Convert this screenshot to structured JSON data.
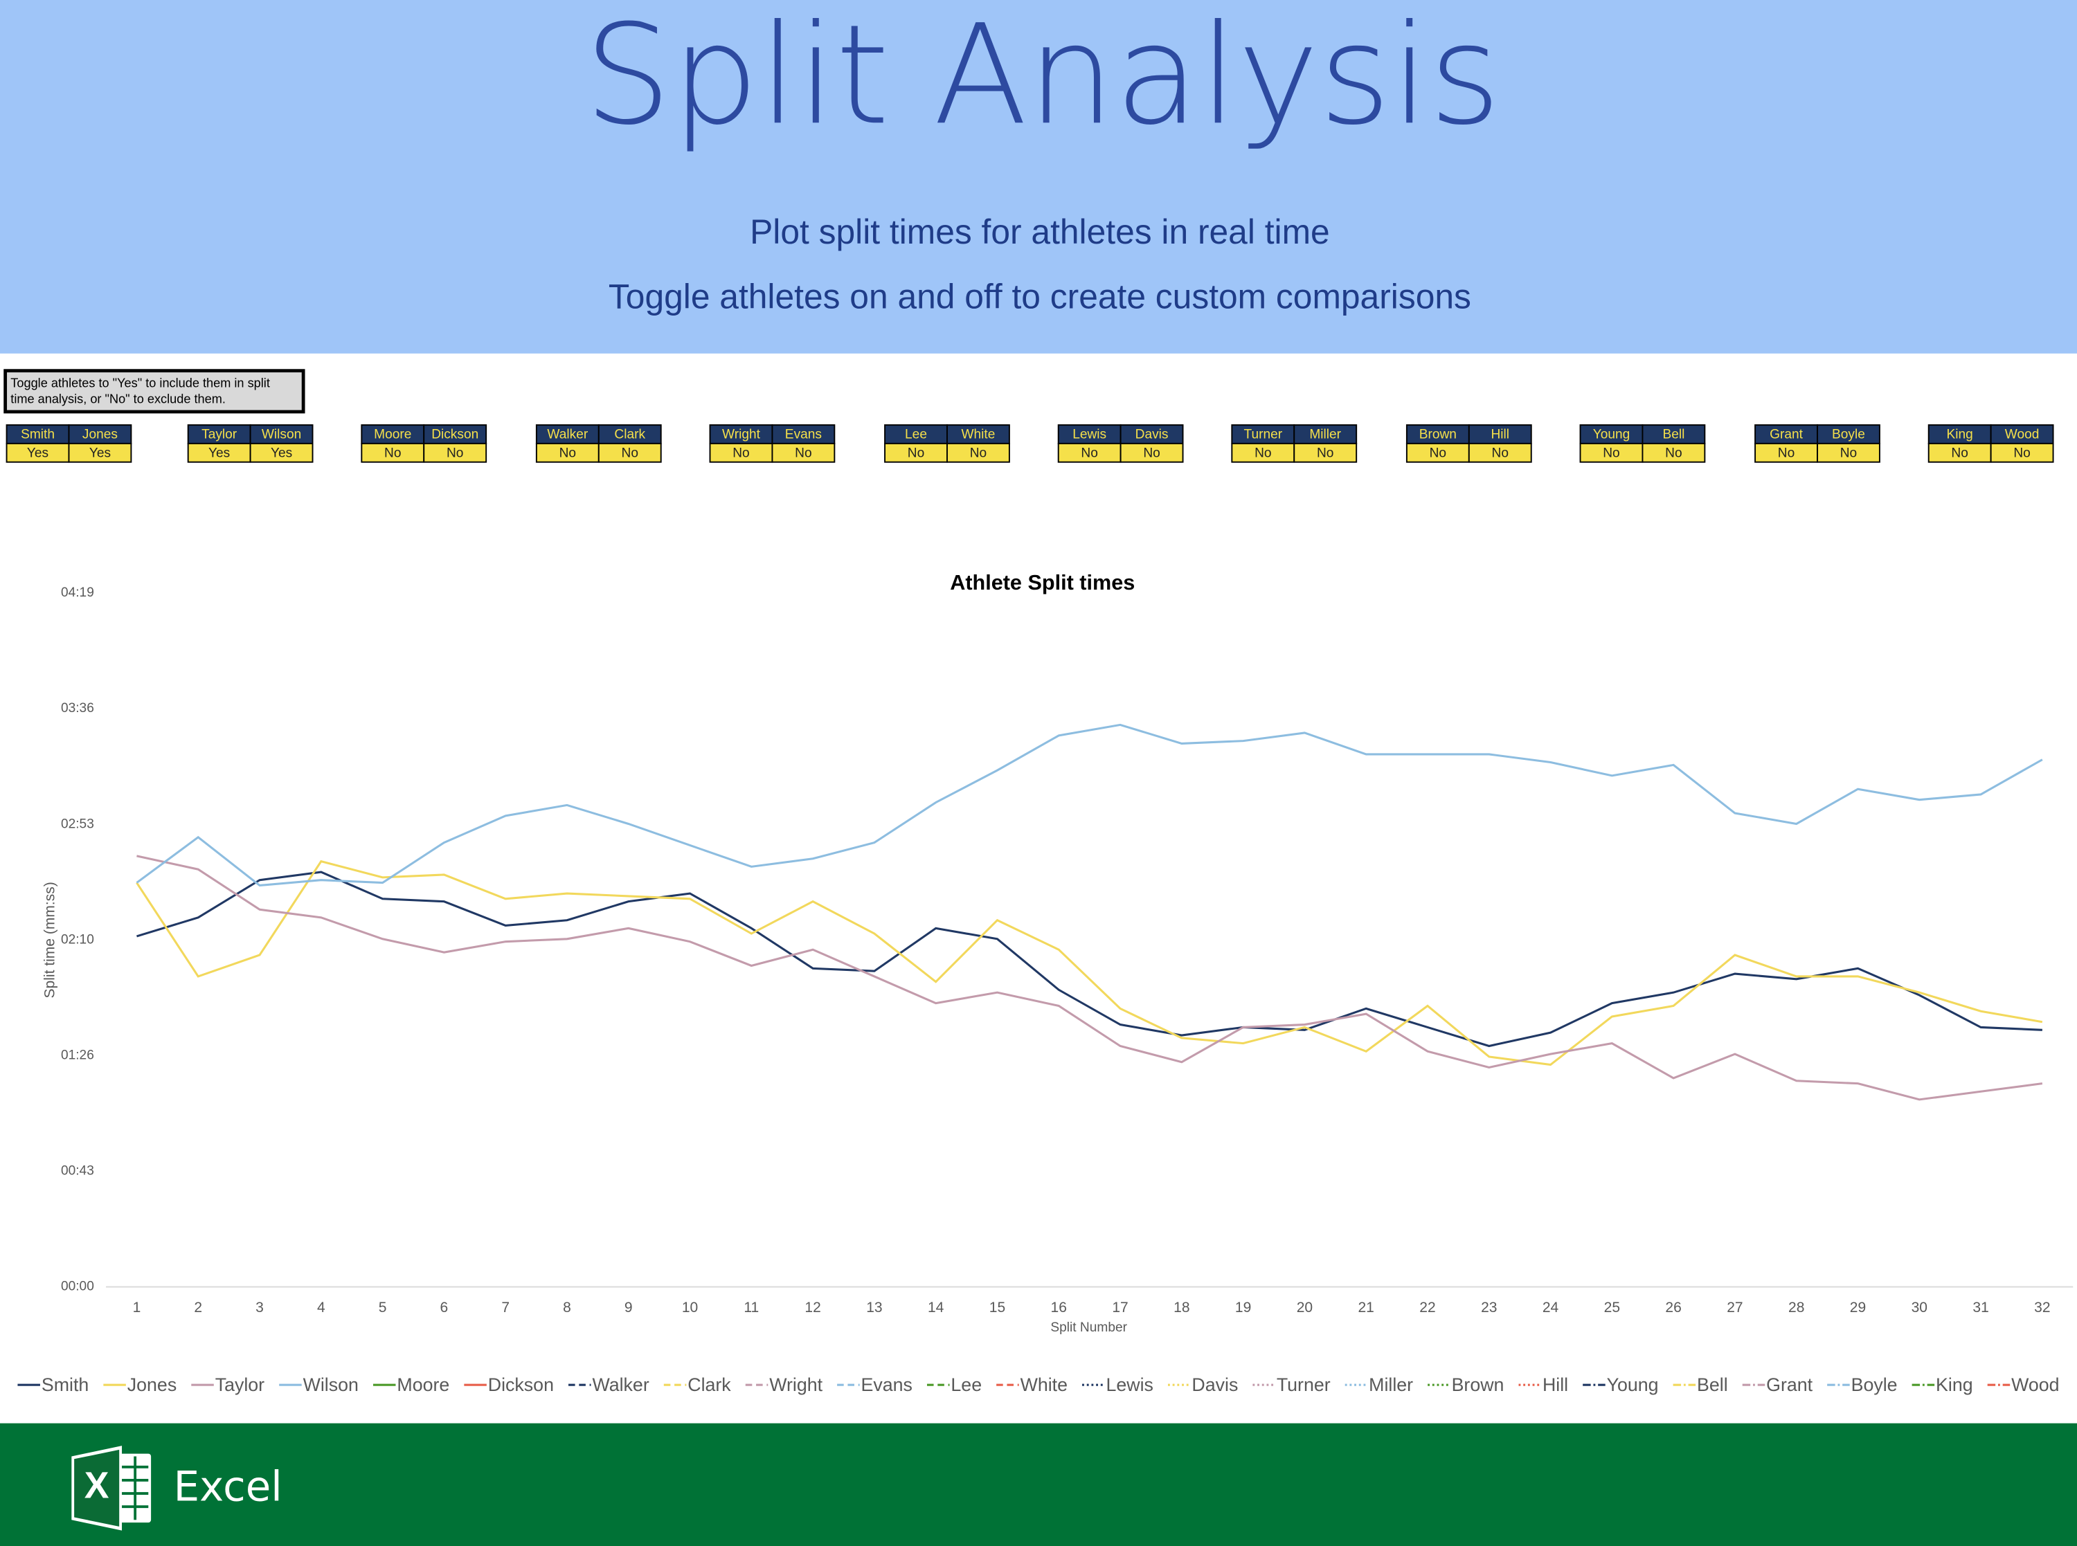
{
  "header": {
    "title": "Split Analysis",
    "subtitle": "Plot split times for athletes in real time",
    "tagline": "Toggle athletes on and off to create custom comparisons"
  },
  "instructions": [
    "Toggle athletes to \"Yes\" to include them in split",
    "time analysis, or \"No\" to exclude them."
  ],
  "toggles": [
    "Yes",
    "Yes",
    "Yes",
    "Yes",
    "No",
    "No",
    "No",
    "No",
    "No",
    "No",
    "No",
    "No",
    "No",
    "No",
    "No",
    "No",
    "No",
    "No",
    "No",
    "No",
    "No",
    "No",
    "No",
    "No"
  ],
  "chart_data": {
    "type": "line",
    "title": "Athlete Split times",
    "x_label": "Split Number",
    "y_label": "Split time (mm:ss)",
    "x": [
      1,
      2,
      3,
      4,
      5,
      6,
      7,
      8,
      9,
      10,
      11,
      12,
      13,
      14,
      15,
      16,
      17,
      18,
      19,
      20,
      21,
      22,
      23,
      24,
      25,
      26,
      27,
      28,
      29,
      30,
      31,
      32
    ],
    "xlim": [
      0.5,
      32.5
    ],
    "xticks": [
      1,
      2,
      3,
      4,
      5,
      6,
      7,
      8,
      9,
      10,
      11,
      12,
      13,
      14,
      15,
      16,
      17,
      18,
      19,
      20,
      21,
      22,
      23,
      24,
      25,
      26,
      27,
      28,
      29,
      30,
      31,
      32
    ],
    "ylim": [
      0,
      259.2
    ],
    "yticks": [
      {
        "value": 0,
        "label": "00:00"
      },
      {
        "value": 43.2,
        "label": "00:43"
      },
      {
        "value": 86.4,
        "label": "01:26"
      },
      {
        "value": 129.6,
        "label": "02:10"
      },
      {
        "value": 172.8,
        "label": "02:53"
      },
      {
        "value": 216,
        "label": "03:36"
      },
      {
        "value": 259.2,
        "label": "04:19"
      }
    ],
    "grid": false,
    "series": [
      {
        "name": "Smith",
        "color": "#203864",
        "dash": "solid",
        "values": [
          131,
          138,
          152,
          155,
          145,
          144,
          135,
          137,
          144,
          147,
          134,
          119,
          118,
          134,
          130,
          111,
          98,
          94,
          97,
          96,
          104,
          97,
          90,
          95,
          106,
          110,
          117,
          115,
          119,
          109,
          97,
          96
        ]
      },
      {
        "name": "Jones",
        "color": "#f2d85c",
        "dash": "solid",
        "values": [
          151,
          116,
          124,
          159,
          153,
          154,
          145,
          147,
          146,
          145,
          132,
          144,
          132,
          114,
          137,
          126,
          104,
          93,
          91,
          97,
          88,
          105,
          86,
          83,
          101,
          105,
          124,
          116,
          116,
          110,
          103,
          99
        ]
      },
      {
        "name": "Taylor",
        "color": "#c39bab",
        "dash": "solid",
        "values": [
          161,
          156,
          141,
          138,
          130,
          125,
          129,
          130,
          134,
          129,
          120,
          126,
          116,
          106,
          110,
          105,
          90,
          84,
          97,
          98,
          102,
          88,
          82,
          87,
          91,
          78,
          87,
          77,
          76,
          70,
          73,
          76
        ]
      },
      {
        "name": "Wilson",
        "color": "#8dbde0",
        "dash": "solid",
        "values": [
          151,
          168,
          150,
          152,
          151,
          166,
          176,
          180,
          173,
          165,
          157,
          160,
          166,
          181,
          193,
          206,
          210,
          203,
          204,
          207,
          199,
          199,
          199,
          196,
          191,
          195,
          177,
          173,
          186,
          182,
          184,
          197
        ]
      },
      {
        "name": "Moore",
        "color": "#4d9a2a",
        "dash": "solid",
        "values": [
          null,
          null,
          null,
          null,
          null,
          null,
          null,
          null,
          null,
          null,
          null,
          null,
          null,
          null,
          null,
          null,
          null,
          null,
          null,
          null,
          null,
          null,
          null,
          null,
          null,
          null,
          null,
          null,
          null,
          null,
          null,
          null
        ]
      },
      {
        "name": "Dickson",
        "color": "#e8604c",
        "dash": "solid",
        "values": [
          null,
          null,
          null,
          null,
          null,
          null,
          null,
          null,
          null,
          null,
          null,
          null,
          null,
          null,
          null,
          null,
          null,
          null,
          null,
          null,
          null,
          null,
          null,
          null,
          null,
          null,
          null,
          null,
          null,
          null,
          null,
          null
        ]
      },
      {
        "name": "Walker",
        "color": "#203864",
        "dash": "dash",
        "values": [
          null,
          null,
          null,
          null,
          null,
          null,
          null,
          null,
          null,
          null,
          null,
          null,
          null,
          null,
          null,
          null,
          null,
          null,
          null,
          null,
          null,
          null,
          null,
          null,
          null,
          null,
          null,
          null,
          null,
          null,
          null,
          null
        ]
      },
      {
        "name": "Clark",
        "color": "#f2d85c",
        "dash": "dash",
        "values": [
          null,
          null,
          null,
          null,
          null,
          null,
          null,
          null,
          null,
          null,
          null,
          null,
          null,
          null,
          null,
          null,
          null,
          null,
          null,
          null,
          null,
          null,
          null,
          null,
          null,
          null,
          null,
          null,
          null,
          null,
          null,
          null
        ]
      },
      {
        "name": "Wright",
        "color": "#c39bab",
        "dash": "dash",
        "values": [
          null,
          null,
          null,
          null,
          null,
          null,
          null,
          null,
          null,
          null,
          null,
          null,
          null,
          null,
          null,
          null,
          null,
          null,
          null,
          null,
          null,
          null,
          null,
          null,
          null,
          null,
          null,
          null,
          null,
          null,
          null,
          null
        ]
      },
      {
        "name": "Evans",
        "color": "#8dbde0",
        "dash": "dash",
        "values": [
          null,
          null,
          null,
          null,
          null,
          null,
          null,
          null,
          null,
          null,
          null,
          null,
          null,
          null,
          null,
          null,
          null,
          null,
          null,
          null,
          null,
          null,
          null,
          null,
          null,
          null,
          null,
          null,
          null,
          null,
          null,
          null
        ]
      },
      {
        "name": "Lee",
        "color": "#4d9a2a",
        "dash": "dash",
        "values": [
          null,
          null,
          null,
          null,
          null,
          null,
          null,
          null,
          null,
          null,
          null,
          null,
          null,
          null,
          null,
          null,
          null,
          null,
          null,
          null,
          null,
          null,
          null,
          null,
          null,
          null,
          null,
          null,
          null,
          null,
          null,
          null
        ]
      },
      {
        "name": "White",
        "color": "#e8604c",
        "dash": "dash",
        "values": [
          null,
          null,
          null,
          null,
          null,
          null,
          null,
          null,
          null,
          null,
          null,
          null,
          null,
          null,
          null,
          null,
          null,
          null,
          null,
          null,
          null,
          null,
          null,
          null,
          null,
          null,
          null,
          null,
          null,
          null,
          null,
          null
        ]
      },
      {
        "name": "Lewis",
        "color": "#203864",
        "dash": "dot",
        "values": [
          null,
          null,
          null,
          null,
          null,
          null,
          null,
          null,
          null,
          null,
          null,
          null,
          null,
          null,
          null,
          null,
          null,
          null,
          null,
          null,
          null,
          null,
          null,
          null,
          null,
          null,
          null,
          null,
          null,
          null,
          null,
          null
        ]
      },
      {
        "name": "Davis",
        "color": "#f2d85c",
        "dash": "dot",
        "values": [
          null,
          null,
          null,
          null,
          null,
          null,
          null,
          null,
          null,
          null,
          null,
          null,
          null,
          null,
          null,
          null,
          null,
          null,
          null,
          null,
          null,
          null,
          null,
          null,
          null,
          null,
          null,
          null,
          null,
          null,
          null,
          null
        ]
      },
      {
        "name": "Turner",
        "color": "#c39bab",
        "dash": "dot",
        "values": [
          null,
          null,
          null,
          null,
          null,
          null,
          null,
          null,
          null,
          null,
          null,
          null,
          null,
          null,
          null,
          null,
          null,
          null,
          null,
          null,
          null,
          null,
          null,
          null,
          null,
          null,
          null,
          null,
          null,
          null,
          null,
          null
        ]
      },
      {
        "name": "Miller",
        "color": "#8dbde0",
        "dash": "dot",
        "values": [
          null,
          null,
          null,
          null,
          null,
          null,
          null,
          null,
          null,
          null,
          null,
          null,
          null,
          null,
          null,
          null,
          null,
          null,
          null,
          null,
          null,
          null,
          null,
          null,
          null,
          null,
          null,
          null,
          null,
          null,
          null,
          null
        ]
      },
      {
        "name": "Brown",
        "color": "#4d9a2a",
        "dash": "dot",
        "values": [
          null,
          null,
          null,
          null,
          null,
          null,
          null,
          null,
          null,
          null,
          null,
          null,
          null,
          null,
          null,
          null,
          null,
          null,
          null,
          null,
          null,
          null,
          null,
          null,
          null,
          null,
          null,
          null,
          null,
          null,
          null,
          null
        ]
      },
      {
        "name": "Hill",
        "color": "#e8604c",
        "dash": "dot",
        "values": [
          null,
          null,
          null,
          null,
          null,
          null,
          null,
          null,
          null,
          null,
          null,
          null,
          null,
          null,
          null,
          null,
          null,
          null,
          null,
          null,
          null,
          null,
          null,
          null,
          null,
          null,
          null,
          null,
          null,
          null,
          null,
          null
        ]
      },
      {
        "name": "Young",
        "color": "#203864",
        "dash": "dashdot",
        "values": [
          null,
          null,
          null,
          null,
          null,
          null,
          null,
          null,
          null,
          null,
          null,
          null,
          null,
          null,
          null,
          null,
          null,
          null,
          null,
          null,
          null,
          null,
          null,
          null,
          null,
          null,
          null,
          null,
          null,
          null,
          null,
          null
        ]
      },
      {
        "name": "Bell",
        "color": "#f2d85c",
        "dash": "dashdot",
        "values": [
          null,
          null,
          null,
          null,
          null,
          null,
          null,
          null,
          null,
          null,
          null,
          null,
          null,
          null,
          null,
          null,
          null,
          null,
          null,
          null,
          null,
          null,
          null,
          null,
          null,
          null,
          null,
          null,
          null,
          null,
          null,
          null
        ]
      },
      {
        "name": "Grant",
        "color": "#c39bab",
        "dash": "dashdot",
        "values": [
          null,
          null,
          null,
          null,
          null,
          null,
          null,
          null,
          null,
          null,
          null,
          null,
          null,
          null,
          null,
          null,
          null,
          null,
          null,
          null,
          null,
          null,
          null,
          null,
          null,
          null,
          null,
          null,
          null,
          null,
          null,
          null
        ]
      },
      {
        "name": "Boyle",
        "color": "#8dbde0",
        "dash": "dashdot",
        "values": [
          null,
          null,
          null,
          null,
          null,
          null,
          null,
          null,
          null,
          null,
          null,
          null,
          null,
          null,
          null,
          null,
          null,
          null,
          null,
          null,
          null,
          null,
          null,
          null,
          null,
          null,
          null,
          null,
          null,
          null,
          null,
          null
        ]
      },
      {
        "name": "King",
        "color": "#4d9a2a",
        "dash": "dashdot",
        "values": [
          null,
          null,
          null,
          null,
          null,
          null,
          null,
          null,
          null,
          null,
          null,
          null,
          null,
          null,
          null,
          null,
          null,
          null,
          null,
          null,
          null,
          null,
          null,
          null,
          null,
          null,
          null,
          null,
          null,
          null,
          null,
          null
        ]
      },
      {
        "name": "Wood",
        "color": "#e8604c",
        "dash": "dashdot",
        "values": [
          null,
          null,
          null,
          null,
          null,
          null,
          null,
          null,
          null,
          null,
          null,
          null,
          null,
          null,
          null,
          null,
          null,
          null,
          null,
          null,
          null,
          null,
          null,
          null,
          null,
          null,
          null,
          null,
          null,
          null,
          null,
          null
        ]
      }
    ]
  },
  "footer": {
    "app": "Excel"
  }
}
